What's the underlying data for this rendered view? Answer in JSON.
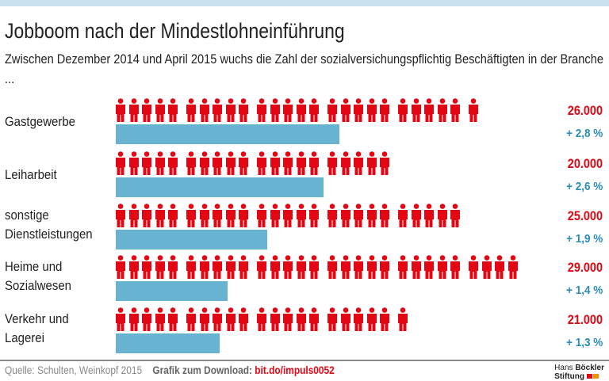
{
  "title": "Jobboom nach der Mindestlohneinführung",
  "subtitle": "Zwischen Dezember 2014 und April 2015 wuchs die Zahl der sozialversichungspflichtig Beschäftigten in der Branche ...",
  "colors": {
    "figure": "#e30613",
    "bar": "#68b3d1",
    "value": "#e30613",
    "percent": "#2a8cb8"
  },
  "chart_data": {
    "type": "bar",
    "categories": [
      "Gastgewerbe",
      "Leiharbeit",
      "sonstige\nDienstleistungen",
      "Heime und\nSozialwesen",
      "Verkehr und\nLagerei"
    ],
    "series": [
      {
        "values": [
          26000,
          20000,
          25000,
          29000,
          21000
        ],
        "labels": [
          "26.000",
          "20.000",
          "25.000",
          "29.000",
          "21.000"
        ],
        "mark": "person-icons, 1 icon = 1.000"
      },
      {
        "values": [
          2.8,
          2.6,
          1.9,
          1.4,
          1.3
        ],
        "labels": [
          "+ 2,8 %",
          "+ 2,6 %",
          "+ 1,9 %",
          "+ 1,4 %",
          "+ 1,3 %"
        ],
        "mark": "bar"
      }
    ]
  },
  "footer": {
    "source": "Quelle: Schulten, Weinkopf 2015",
    "download_label": "Grafik zum Download:",
    "download_link": "bit.do/impuls0052",
    "logo_line1a": "Hans",
    "logo_line1b": "Böckler",
    "logo_line2": "Stiftung"
  }
}
